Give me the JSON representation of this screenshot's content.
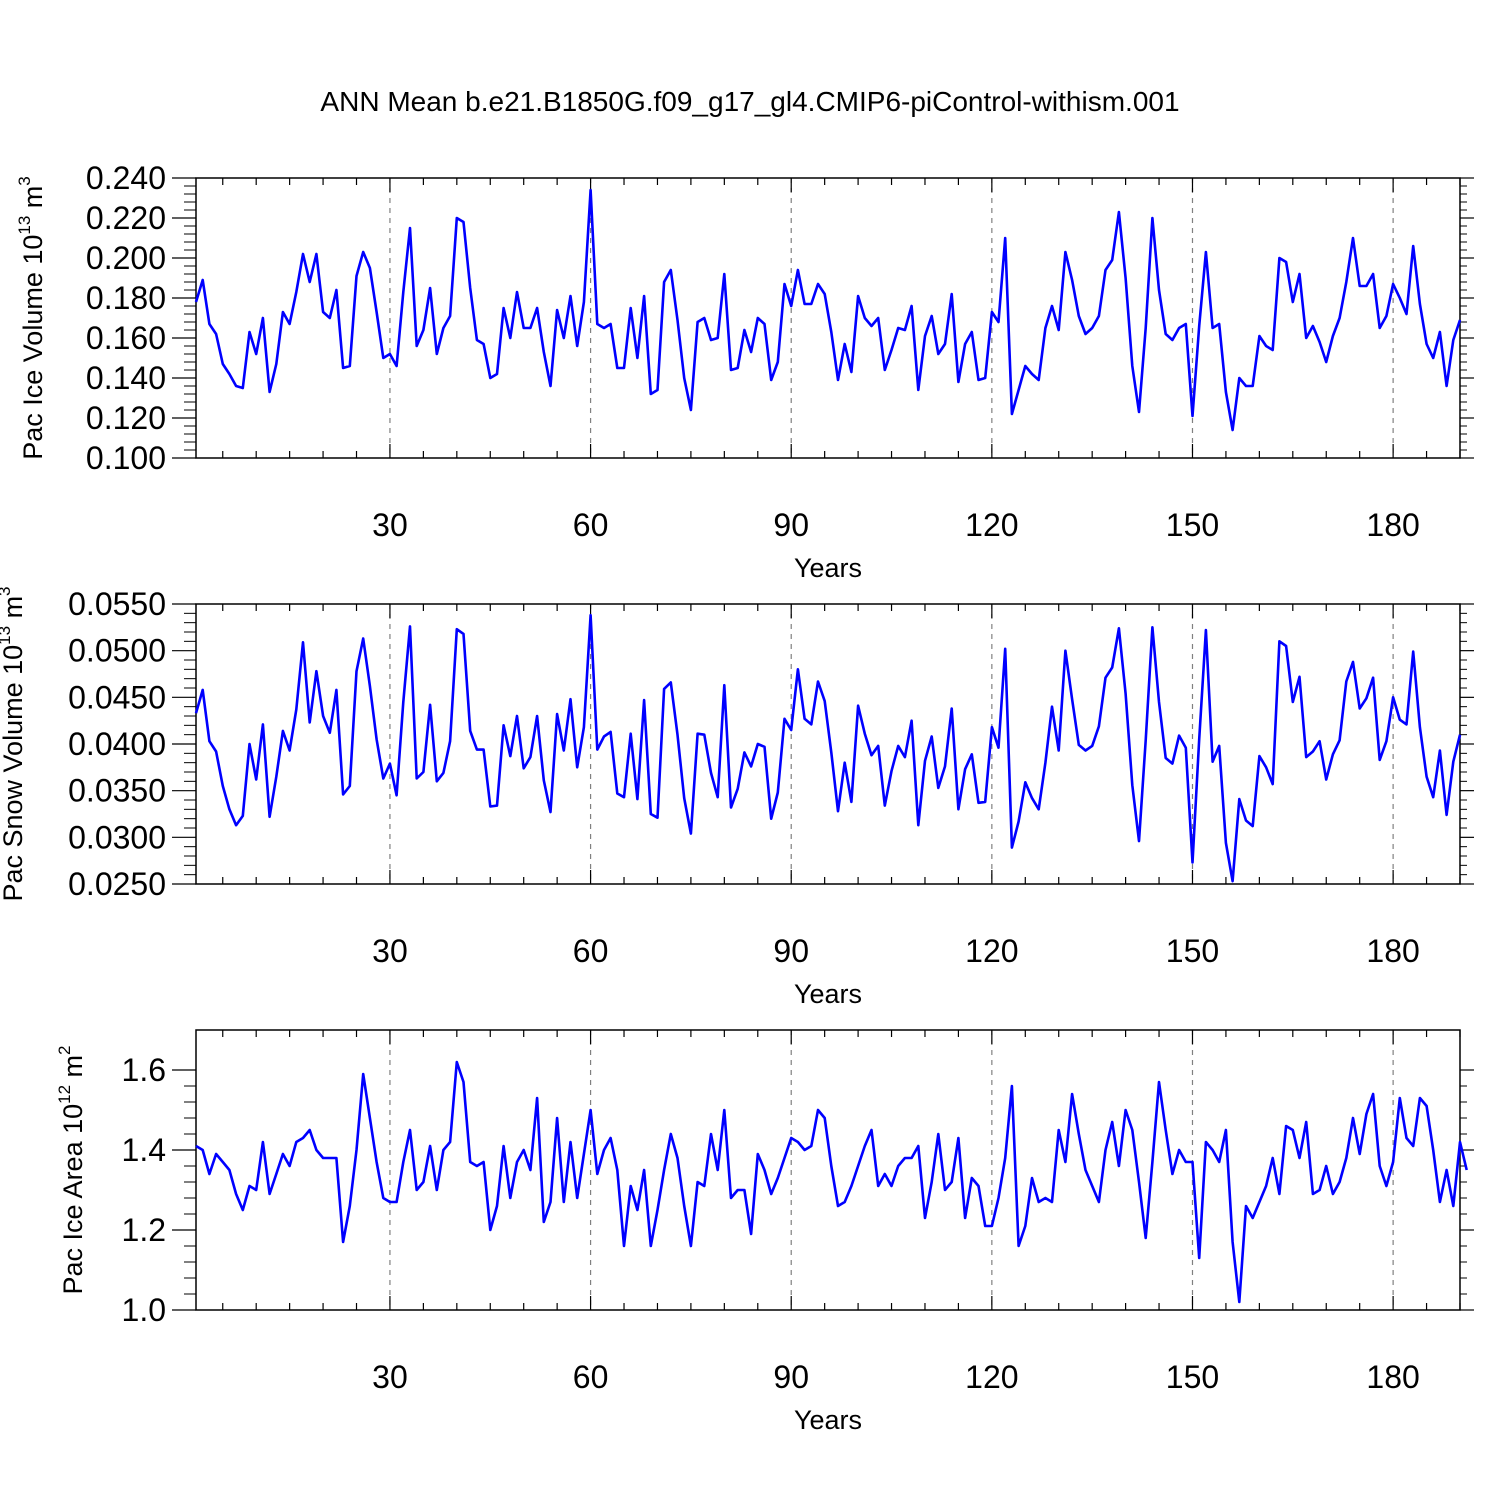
{
  "figure": {
    "title": "ANN Mean b.e21.B1850G.f09_g17_gl4.CMIP6-piControl-withism.001"
  },
  "colors": {
    "series": "#0000ff",
    "axis": "#000000",
    "grid": "#808080"
  },
  "chart_data": [
    {
      "type": "line",
      "ylabel": {
        "base": "Pac Ice Volume 10",
        "exp": "13",
        "unit": " m",
        "unit_exp": "3"
      },
      "xlabel": "Years",
      "xlim": [
        1,
        190
      ],
      "ylim": [
        0.1,
        0.24
      ],
      "xticks": [
        30,
        60,
        90,
        120,
        150,
        180
      ],
      "xtick_labels": [
        "30",
        "60",
        "90",
        "120",
        "150",
        "180"
      ],
      "yticks": [
        0.1,
        0.12,
        0.14,
        0.16,
        0.18,
        0.2,
        0.22,
        0.24
      ],
      "ytick_labels": [
        "0.100",
        "0.120",
        "0.140",
        "0.160",
        "0.180",
        "0.200",
        "0.220",
        "0.240"
      ],
      "grid": "vertical dashed at major x ticks",
      "series": [
        {
          "values": [
            0.178,
            0.189,
            0.167,
            0.162,
            0.147,
            0.142,
            0.136,
            0.135,
            0.163,
            0.152,
            0.17,
            0.133,
            0.147,
            0.173,
            0.167,
            0.183,
            0.202,
            0.188,
            0.202,
            0.173,
            0.17,
            0.184,
            0.145,
            0.146,
            0.191,
            0.203,
            0.195,
            0.173,
            0.15,
            0.152,
            0.146,
            0.183,
            0.215,
            0.156,
            0.164,
            0.185,
            0.152,
            0.165,
            0.171,
            0.22,
            0.218,
            0.185,
            0.159,
            0.157,
            0.14,
            0.142,
            0.175,
            0.16,
            0.183,
            0.165,
            0.165,
            0.175,
            0.153,
            0.136,
            0.174,
            0.16,
            0.181,
            0.156,
            0.178,
            0.234,
            0.167,
            0.165,
            0.167,
            0.145,
            0.145,
            0.175,
            0.15,
            0.181,
            0.132,
            0.134,
            0.188,
            0.194,
            0.169,
            0.14,
            0.124,
            0.168,
            0.17,
            0.159,
            0.16,
            0.192,
            0.144,
            0.145,
            0.164,
            0.153,
            0.17,
            0.167,
            0.139,
            0.148,
            0.187,
            0.176,
            0.194,
            0.177,
            0.177,
            0.187,
            0.182,
            0.163,
            0.139,
            0.157,
            0.143,
            0.181,
            0.17,
            0.166,
            0.17,
            0.144,
            0.154,
            0.165,
            0.164,
            0.176,
            0.134,
            0.161,
            0.171,
            0.152,
            0.157,
            0.182,
            0.138,
            0.157,
            0.163,
            0.139,
            0.14,
            0.173,
            0.168,
            0.21,
            0.122,
            0.134,
            0.146,
            0.142,
            0.139,
            0.165,
            0.176,
            0.164,
            0.203,
            0.189,
            0.171,
            0.162,
            0.165,
            0.171,
            0.194,
            0.199,
            0.223,
            0.19,
            0.146,
            0.123,
            0.165,
            0.22,
            0.184,
            0.162,
            0.159,
            0.165,
            0.167,
            0.121,
            0.166,
            0.203,
            0.165,
            0.167,
            0.133,
            0.114,
            0.14,
            0.136,
            0.136,
            0.161,
            0.156,
            0.154,
            0.2,
            0.198,
            0.178,
            0.192,
            0.16,
            0.166,
            0.158,
            0.148,
            0.161,
            0.17,
            0.188,
            0.21,
            0.186,
            0.186,
            0.192,
            0.165,
            0.171,
            0.187,
            0.18,
            0.172,
            0.206,
            0.177,
            0.157,
            0.15,
            0.163,
            0.136,
            0.159,
            0.169
          ]
        }
      ]
    },
    {
      "type": "line",
      "ylabel": {
        "base": "Pac Snow Volume 10",
        "exp": "13",
        "unit": " m",
        "unit_exp": "3"
      },
      "xlabel": "Years",
      "xlim": [
        1,
        190
      ],
      "ylim": [
        0.025,
        0.055
      ],
      "xticks": [
        30,
        60,
        90,
        120,
        150,
        180
      ],
      "xtick_labels": [
        "30",
        "60",
        "90",
        "120",
        "150",
        "180"
      ],
      "yticks": [
        0.025,
        0.03,
        0.035,
        0.04,
        0.045,
        0.05,
        0.055
      ],
      "ytick_labels": [
        "0.0250",
        "0.0300",
        "0.0350",
        "0.0400",
        "0.0450",
        "0.0500",
        "0.0550"
      ],
      "grid": "vertical dashed at major x ticks",
      "series": [
        {
          "values": [
            0.0433,
            0.0458,
            0.0403,
            0.0392,
            0.0355,
            0.033,
            0.0313,
            0.0323,
            0.04,
            0.0362,
            0.0421,
            0.0322,
            0.0365,
            0.0414,
            0.0393,
            0.0437,
            0.0509,
            0.0423,
            0.0478,
            0.043,
            0.0412,
            0.0458,
            0.0346,
            0.0355,
            0.0478,
            0.0513,
            0.0462,
            0.0405,
            0.0363,
            0.0379,
            0.0345,
            0.0445,
            0.0526,
            0.0363,
            0.037,
            0.0442,
            0.036,
            0.0369,
            0.0403,
            0.0523,
            0.0518,
            0.0414,
            0.0394,
            0.0394,
            0.0333,
            0.0334,
            0.042,
            0.0387,
            0.043,
            0.0374,
            0.0386,
            0.043,
            0.0361,
            0.0327,
            0.0432,
            0.0393,
            0.0448,
            0.0375,
            0.0418,
            0.0538,
            0.0394,
            0.0408,
            0.0413,
            0.0347,
            0.0343,
            0.0411,
            0.0341,
            0.0447,
            0.0325,
            0.0321,
            0.0459,
            0.0466,
            0.041,
            0.0342,
            0.0304,
            0.0411,
            0.041,
            0.0369,
            0.0343,
            0.0463,
            0.0332,
            0.0352,
            0.0391,
            0.0376,
            0.04,
            0.0397,
            0.032,
            0.0348,
            0.0427,
            0.0415,
            0.048,
            0.0427,
            0.0421,
            0.0467,
            0.0446,
            0.0391,
            0.0328,
            0.038,
            0.0338,
            0.0441,
            0.0411,
            0.0388,
            0.0398,
            0.0334,
            0.0371,
            0.0398,
            0.0386,
            0.0425,
            0.0313,
            0.0382,
            0.0408,
            0.0353,
            0.0376,
            0.0438,
            0.033,
            0.0373,
            0.0389,
            0.0337,
            0.0338,
            0.0418,
            0.0396,
            0.0502,
            0.0289,
            0.0317,
            0.0359,
            0.0342,
            0.033,
            0.038,
            0.044,
            0.0393,
            0.05,
            0.0448,
            0.0399,
            0.0393,
            0.0398,
            0.0419,
            0.0471,
            0.0482,
            0.0524,
            0.0454,
            0.0356,
            0.0296,
            0.0404,
            0.0525,
            0.0445,
            0.0385,
            0.0379,
            0.0409,
            0.0396,
            0.0273,
            0.0405,
            0.0522,
            0.0381,
            0.0398,
            0.0294,
            0.0253,
            0.0341,
            0.0318,
            0.0312,
            0.0387,
            0.0375,
            0.0357,
            0.051,
            0.0505,
            0.0445,
            0.0472,
            0.0386,
            0.0392,
            0.0403,
            0.0362,
            0.0389,
            0.0404,
            0.0467,
            0.0488,
            0.0438,
            0.0449,
            0.0471,
            0.0383,
            0.0403,
            0.045,
            0.0426,
            0.0421,
            0.0499,
            0.0418,
            0.0365,
            0.0343,
            0.0393,
            0.0324,
            0.0381,
            0.041
          ]
        }
      ]
    },
    {
      "type": "line",
      "ylabel": {
        "base": "Pac Ice Area 10",
        "exp": "12",
        "unit": " m",
        "unit_exp": "2"
      },
      "xlabel": "Years",
      "xlim": [
        1,
        190
      ],
      "ylim": [
        1.0,
        1.7
      ],
      "xticks": [
        30,
        60,
        90,
        120,
        150,
        180
      ],
      "xtick_labels": [
        "30",
        "60",
        "90",
        "120",
        "150",
        "180"
      ],
      "yticks": [
        1.0,
        1.2,
        1.4,
        1.6
      ],
      "ytick_labels": [
        "1.0",
        "1.2",
        "1.4",
        "1.6"
      ],
      "grid": "vertical dashed at major x ticks",
      "series": [
        {
          "values": [
            1.41,
            1.4,
            1.34,
            1.39,
            1.37,
            1.35,
            1.29,
            1.25,
            1.31,
            1.3,
            1.42,
            1.29,
            1.34,
            1.39,
            1.36,
            1.42,
            1.43,
            1.45,
            1.4,
            1.38,
            1.38,
            1.38,
            1.17,
            1.26,
            1.4,
            1.59,
            1.48,
            1.37,
            1.28,
            1.27,
            1.27,
            1.37,
            1.45,
            1.3,
            1.32,
            1.41,
            1.3,
            1.4,
            1.42,
            1.62,
            1.57,
            1.37,
            1.36,
            1.37,
            1.2,
            1.26,
            1.41,
            1.28,
            1.37,
            1.4,
            1.35,
            1.53,
            1.22,
            1.27,
            1.48,
            1.27,
            1.42,
            1.28,
            1.39,
            1.5,
            1.34,
            1.4,
            1.43,
            1.35,
            1.16,
            1.31,
            1.25,
            1.35,
            1.16,
            1.25,
            1.35,
            1.44,
            1.38,
            1.26,
            1.16,
            1.32,
            1.31,
            1.44,
            1.35,
            1.5,
            1.28,
            1.3,
            1.3,
            1.19,
            1.39,
            1.35,
            1.29,
            1.33,
            1.38,
            1.43,
            1.42,
            1.4,
            1.41,
            1.5,
            1.48,
            1.36,
            1.26,
            1.27,
            1.31,
            1.36,
            1.41,
            1.45,
            1.31,
            1.34,
            1.31,
            1.36,
            1.38,
            1.38,
            1.41,
            1.23,
            1.32,
            1.44,
            1.3,
            1.32,
            1.43,
            1.23,
            1.33,
            1.31,
            1.21,
            1.21,
            1.28,
            1.38,
            1.56,
            1.16,
            1.21,
            1.33,
            1.27,
            1.28,
            1.27,
            1.45,
            1.37,
            1.54,
            1.44,
            1.35,
            1.31,
            1.27,
            1.4,
            1.47,
            1.36,
            1.5,
            1.45,
            1.32,
            1.18,
            1.37,
            1.57,
            1.45,
            1.34,
            1.4,
            1.37,
            1.37,
            1.13,
            1.42,
            1.4,
            1.37,
            1.45,
            1.17,
            1.02,
            1.26,
            1.23,
            1.27,
            1.31,
            1.38,
            1.29,
            1.46,
            1.45,
            1.38,
            1.47,
            1.29,
            1.3,
            1.36,
            1.29,
            1.32,
            1.38,
            1.48,
            1.39,
            1.49,
            1.54,
            1.36,
            1.31,
            1.37,
            1.53,
            1.43,
            1.41,
            1.53,
            1.51,
            1.4,
            1.27,
            1.35,
            1.26,
            1.42,
            1.35
          ]
        }
      ]
    }
  ]
}
